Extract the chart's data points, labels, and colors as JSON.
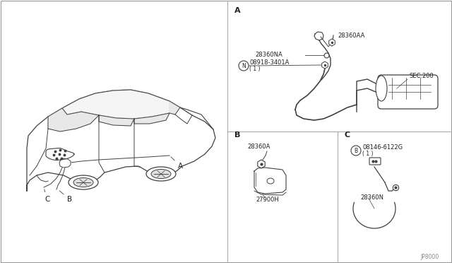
{
  "background_color": "#f0f0f0",
  "line_color": "#404040",
  "text_color": "#202020",
  "annotations": {
    "section_A": "A",
    "section_B": "B",
    "section_C": "C",
    "part_28360AA": "28360AA",
    "part_28360NA": "28360NA",
    "part_N08918": "08918-3401A",
    "part_N08918_sub": "( 1 )",
    "part_N_label": "N",
    "part_SEC200": "SEC.200",
    "part_28360A": "28360A",
    "part_27900H": "27900H",
    "part_B08146": "08146-6122G",
    "part_B08146_sub": "( 1 )",
    "part_B_label": "B",
    "part_28360N": "28360N",
    "label_A_car": "A",
    "label_B_car": "B",
    "label_C_car": "C",
    "bottom_code": "JP8000"
  }
}
